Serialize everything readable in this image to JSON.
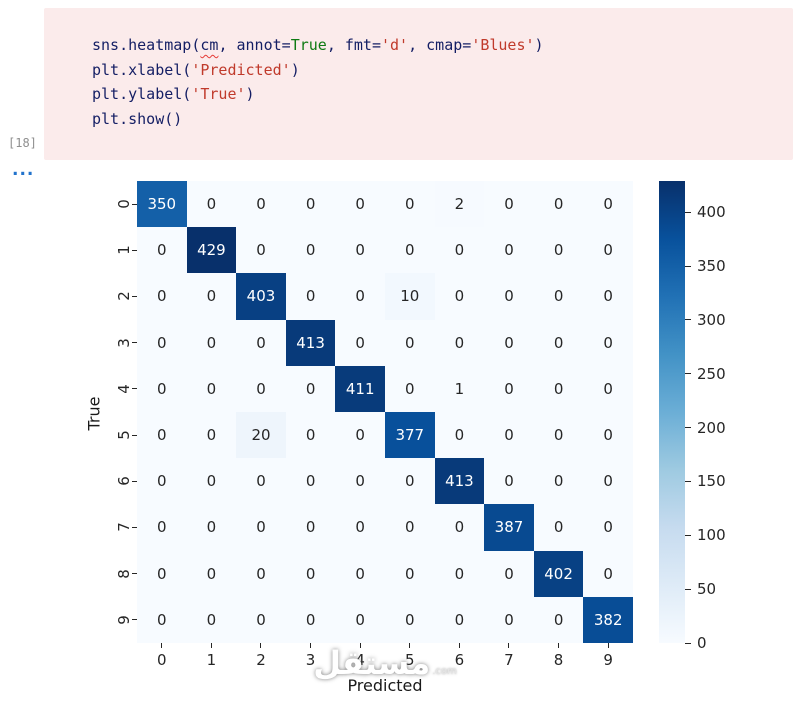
{
  "notebook": {
    "execution_count": "[18]",
    "collapsed_indicator": "...",
    "cell_bg": "#fbebeb",
    "code_lines": [
      [
        {
          "t": "sns.heatmap(",
          "c": "p"
        },
        {
          "t": "cm",
          "c": "w"
        },
        {
          "t": ", annot=",
          "c": "p"
        },
        {
          "t": "True",
          "c": "k"
        },
        {
          "t": ", fmt=",
          "c": "p"
        },
        {
          "t": "'d'",
          "c": "s"
        },
        {
          "t": ", cmap=",
          "c": "p"
        },
        {
          "t": "'Blues'",
          "c": "s"
        },
        {
          "t": ")",
          "c": "p"
        }
      ],
      [
        {
          "t": "plt.xlabel(",
          "c": "p"
        },
        {
          "t": "'Predicted'",
          "c": "s"
        },
        {
          "t": ")",
          "c": "p"
        }
      ],
      [
        {
          "t": "plt.ylabel(",
          "c": "p"
        },
        {
          "t": "'True'",
          "c": "s"
        },
        {
          "t": ")",
          "c": "p"
        }
      ],
      [
        {
          "t": "plt.show()",
          "c": "p"
        }
      ]
    ]
  },
  "colors": {
    "cell-bg": "#fbebeb",
    "code-plain": "#141e64",
    "code-keyword": "#0e7a12",
    "code-string": "#c03a2b",
    "exec-count": "#8f8f8f",
    "ellipsis": "#2273cc",
    "tick-text": "#262626",
    "axis-label": "#1a1a1a"
  },
  "chart_data": {
    "type": "heatmap",
    "title": "",
    "xlabel": "Predicted",
    "ylabel": "True",
    "x_categories": [
      "0",
      "1",
      "2",
      "3",
      "4",
      "5",
      "6",
      "7",
      "8",
      "9"
    ],
    "y_categories": [
      "0",
      "1",
      "2",
      "3",
      "4",
      "5",
      "6",
      "7",
      "8",
      "9"
    ],
    "matrix": [
      [
        350,
        0,
        0,
        0,
        0,
        0,
        2,
        0,
        0,
        0
      ],
      [
        0,
        429,
        0,
        0,
        0,
        0,
        0,
        0,
        0,
        0
      ],
      [
        0,
        0,
        403,
        0,
        0,
        10,
        0,
        0,
        0,
        0
      ],
      [
        0,
        0,
        0,
        413,
        0,
        0,
        0,
        0,
        0,
        0
      ],
      [
        0,
        0,
        0,
        0,
        411,
        0,
        1,
        0,
        0,
        0
      ],
      [
        0,
        0,
        20,
        0,
        0,
        377,
        0,
        0,
        0,
        0
      ],
      [
        0,
        0,
        0,
        0,
        0,
        0,
        413,
        0,
        0,
        0
      ],
      [
        0,
        0,
        0,
        0,
        0,
        0,
        0,
        387,
        0,
        0
      ],
      [
        0,
        0,
        0,
        0,
        0,
        0,
        0,
        0,
        402,
        0
      ],
      [
        0,
        0,
        0,
        0,
        0,
        0,
        0,
        0,
        0,
        382
      ]
    ],
    "vmin": 0,
    "vmax": 429,
    "colormap": "Blues",
    "colormap_anchors": [
      [
        0.0,
        "#f7fbff"
      ],
      [
        0.125,
        "#deebf7"
      ],
      [
        0.25,
        "#c6dbef"
      ],
      [
        0.375,
        "#9ecae1"
      ],
      [
        0.5,
        "#6baed6"
      ],
      [
        0.625,
        "#4292c6"
      ],
      [
        0.75,
        "#2171b5"
      ],
      [
        0.875,
        "#08519c"
      ],
      [
        1.0,
        "#08306b"
      ]
    ],
    "colorbar_ticks": [
      0,
      50,
      100,
      150,
      200,
      250,
      300,
      350,
      400
    ],
    "legend_position": "right-colorbar",
    "grid": false
  },
  "watermark": {
    "text": "مستقل",
    "suffix": ".com"
  }
}
